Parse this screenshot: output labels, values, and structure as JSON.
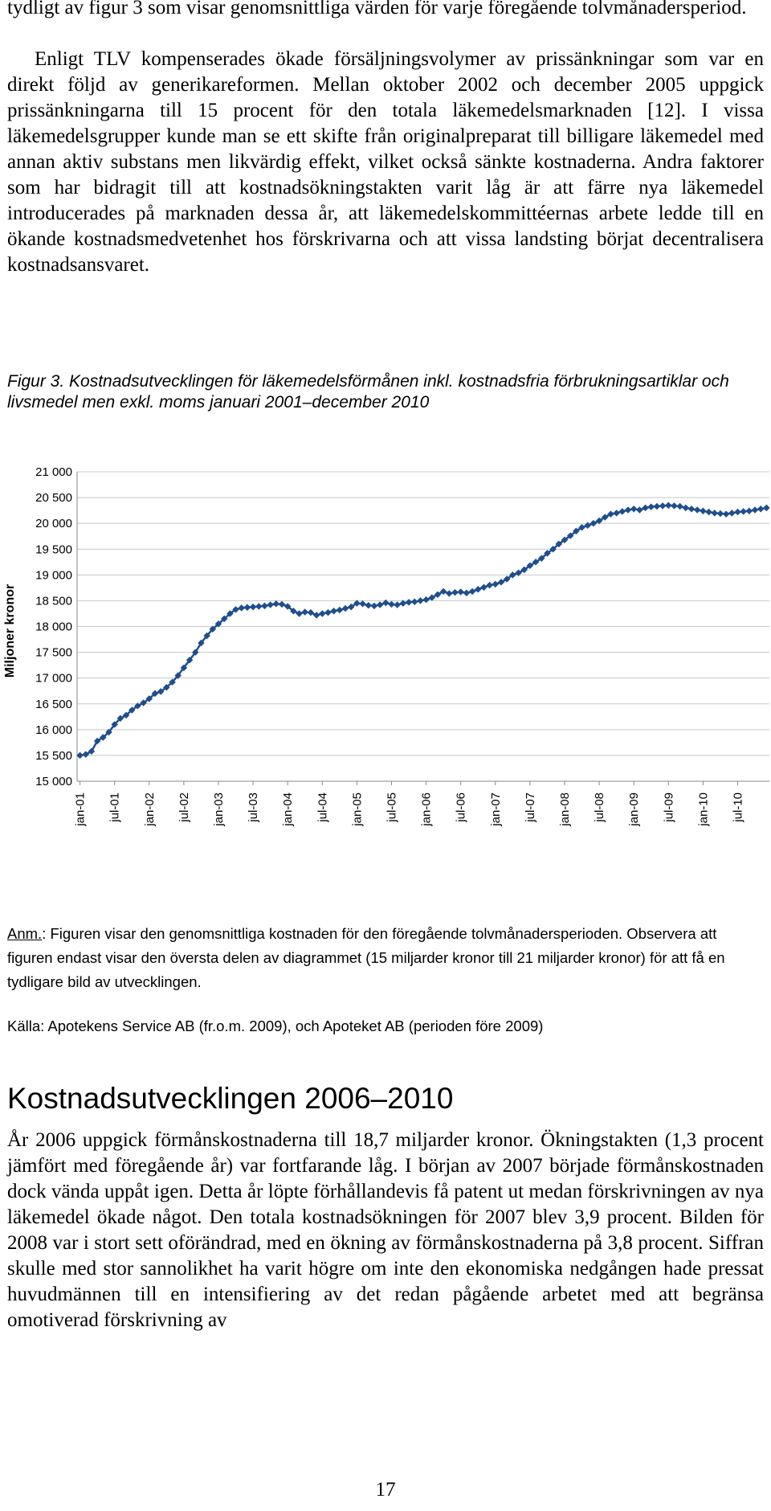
{
  "intro": {
    "para1": "tydligt av figur 3 som visar genomsnittliga värden för varje föregående tolvmånadersperiod.",
    "para2": "Enligt TLV kompenserades ökade försäljningsvolymer av prissänkningar som var en direkt följd av generikareformen. Mellan oktober 2002 och december 2005 uppgick prissänkningarna till 15 procent för den totala läkemedelsmarknaden [12]. I vissa läkemedelsgrupper kunde man se ett skifte från originalpreparat till billigare läkemedel med annan aktiv substans men likvärdig effekt, vilket också sänkte kostnaderna. Andra faktorer som har bidragit till att kostnadsökningstakten varit låg är att färre nya läkemedel introducerades på marknaden dessa år, att läkemedelskommittéernas arbete ledde till en ökande kostnadsmedvetenhet hos förskrivarna och att vissa landsting börjat decentralisera kostnadsansvaret."
  },
  "figure": {
    "caption": "Figur 3. Kostnadsutvecklingen för läkemedelsförmånen inkl. kostnadsfria förbrukningsartiklar och livsmedel men exkl. moms januari 2001–december 2010"
  },
  "chart_data": {
    "type": "line",
    "title": "",
    "xlabel": "",
    "ylabel": "Miljoner kronor",
    "ylim": [
      15000,
      21000
    ],
    "y_ticks": [
      15000,
      15500,
      16000,
      16500,
      17000,
      17500,
      18000,
      18500,
      19000,
      19500,
      20000,
      20500,
      21000
    ],
    "y_tick_labels": [
      "15 000",
      "15 500",
      "16 000",
      "16 500",
      "17 000",
      "17 500",
      "18 000",
      "18 500",
      "19 000",
      "19 500",
      "20 000",
      "20 500",
      "21 000"
    ],
    "x_tick_labels": [
      "jan-01",
      "jul-01",
      "jan-02",
      "jul-02",
      "jan-03",
      "jul-03",
      "jan-04",
      "jul-04",
      "jan-05",
      "jul-05",
      "jan-06",
      "jul-06",
      "jan-07",
      "jul-07",
      "jan-08",
      "jul-08",
      "jan-09",
      "jul-09",
      "jan-10",
      "jul-10"
    ],
    "grid": "horizontal",
    "series_color": "#1f4e8c",
    "x_start": "jan-01",
    "x_end": "dec-10",
    "values": [
      15500,
      15520,
      15580,
      15780,
      15850,
      15950,
      16100,
      16220,
      16280,
      16380,
      16460,
      16520,
      16600,
      16700,
      16740,
      16820,
      16920,
      17050,
      17200,
      17350,
      17500,
      17680,
      17820,
      17950,
      18050,
      18150,
      18250,
      18330,
      18360,
      18370,
      18380,
      18390,
      18400,
      18420,
      18440,
      18430,
      18390,
      18300,
      18250,
      18280,
      18270,
      18220,
      18250,
      18270,
      18300,
      18320,
      18350,
      18380,
      18450,
      18440,
      18410,
      18400,
      18420,
      18460,
      18430,
      18420,
      18450,
      18470,
      18480,
      18500,
      18520,
      18560,
      18620,
      18680,
      18640,
      18660,
      18670,
      18650,
      18680,
      18720,
      18760,
      18800,
      18820,
      18860,
      18920,
      19000,
      19040,
      19100,
      19180,
      19250,
      19320,
      19420,
      19500,
      19600,
      19680,
      19760,
      19850,
      19920,
      19960,
      20000,
      20050,
      20120,
      20180,
      20200,
      20230,
      20260,
      20280,
      20260,
      20300,
      20320,
      20330,
      20340,
      20350,
      20340,
      20330,
      20300,
      20280,
      20260,
      20240,
      20220,
      20200,
      20190,
      20180,
      20200,
      20220,
      20230,
      20240,
      20260,
      20280,
      20300
    ]
  },
  "notes": {
    "anm_label": "Anm.",
    "anm_text": ": Figuren visar den genomsnittliga kostnaden för den föregående tolvmånadersperioden. Observera att figuren endast visar den översta delen av diagrammet (15 miljarder kronor till 21 miljarder kronor) för att få en tydligare bild av utvecklingen.",
    "source": "Källa: Apotekens Service AB (fr.o.m. 2009), och Apoteket AB (perioden före 2009)"
  },
  "section": {
    "heading": "Kostnadsutvecklingen 2006–2010",
    "para": "År 2006 uppgick förmånskostnaderna till 18,7 miljarder kronor. Ökningstakten (1,3 procent jämfört med föregående år) var fortfarande låg. I början av 2007 började förmånskostnaden dock vända uppåt igen. Detta år löpte förhållandevis få patent ut medan förskrivningen av nya läkemedel ökade något. Den totala kostnadsökningen för 2007 blev 3,9 procent. Bilden för 2008 var i stort sett oförändrad, med en ökning av förmånskostnaderna på 3,8 procent. Siffran skulle med stor sannolikhet ha varit högre om inte den ekonomiska nedgången hade pressat huvudmännen till en intensifiering av det redan pågående arbetet med att begränsa omotiverad förskrivning av"
  },
  "page": {
    "number": "17"
  }
}
